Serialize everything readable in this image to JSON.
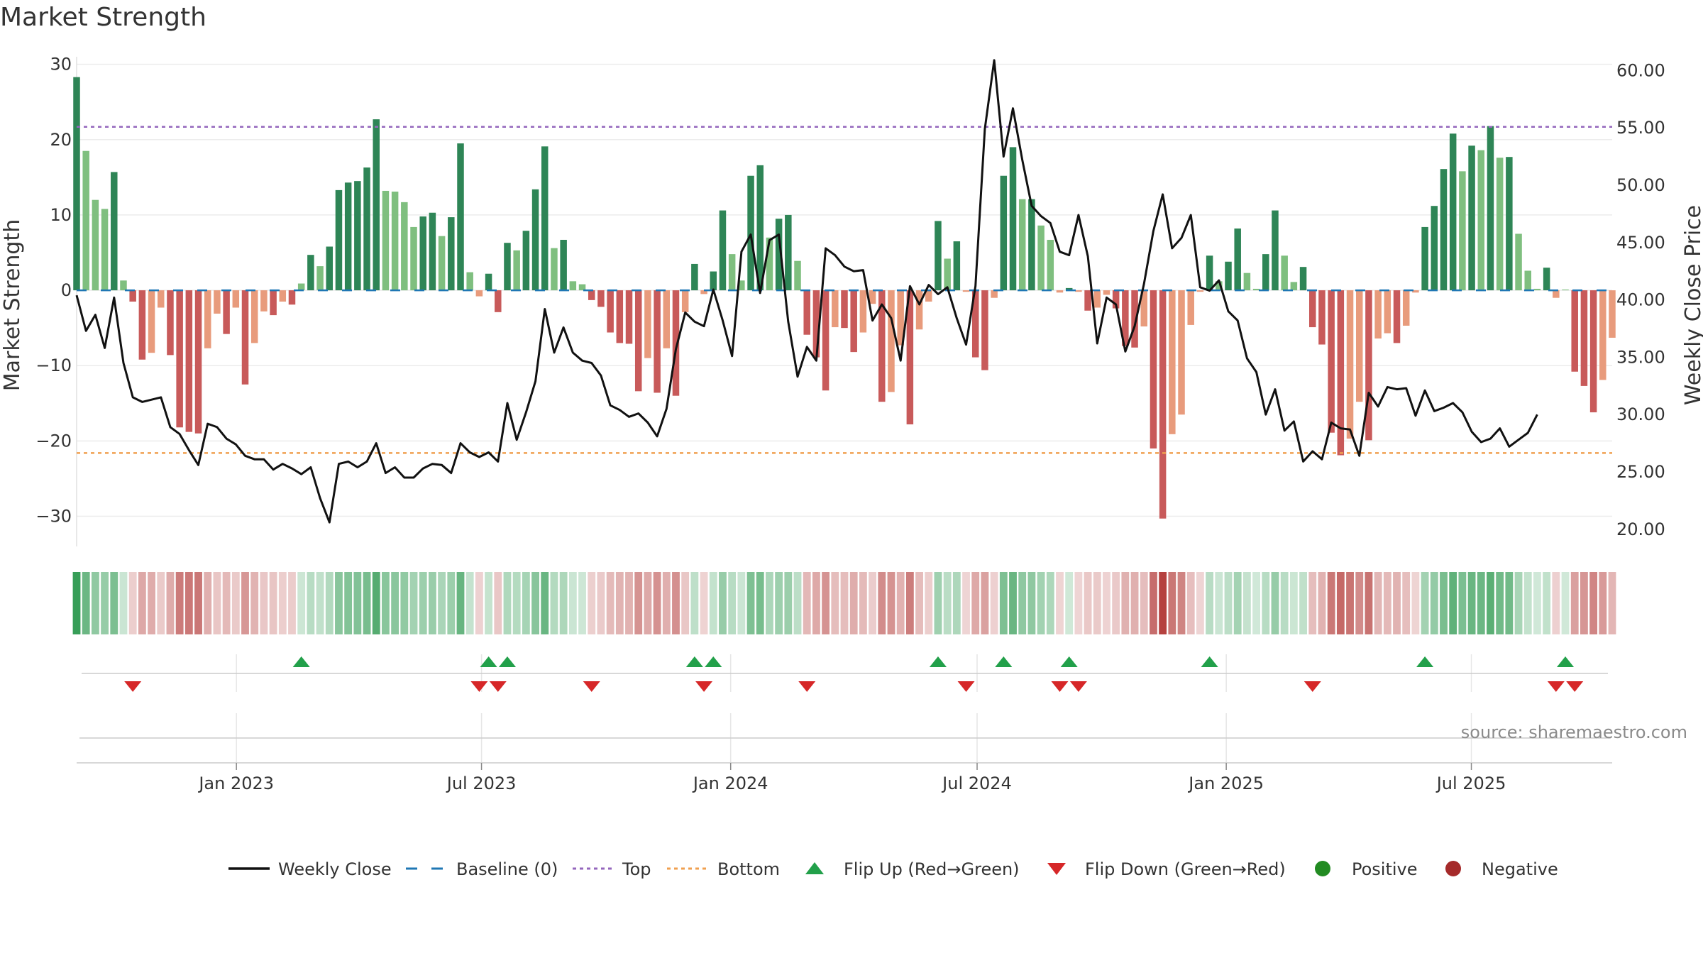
{
  "chart_data": {
    "type": "bar",
    "title": "Market Strength",
    "ylabel": "Market Strength",
    "ylabel_right": "Weekly Close Price",
    "ylim": [
      -34,
      31
    ],
    "ylim_right": [
      18.5,
      61.2
    ],
    "y_ticks": [
      30,
      20,
      10,
      0,
      -10,
      -20,
      -30
    ],
    "y_tick_labels": [
      "30",
      "20",
      "10",
      "0",
      "−10",
      "−20",
      "−30"
    ],
    "y_right_ticks": [
      60,
      55,
      50,
      45,
      40,
      35,
      30,
      25,
      20
    ],
    "y_right_tick_labels": [
      "60.00",
      "55.00",
      "50.00",
      "45.00",
      "40.00",
      "35.00",
      "30.00",
      "25.00",
      "20.00"
    ],
    "x_start": "2022-09-05",
    "x_end": "2025-10-13",
    "x_ticks": [
      "2023-01-01",
      "2023-07-01",
      "2024-01-01",
      "2024-07-01",
      "2025-01-01",
      "2025-07-01"
    ],
    "x_tick_labels": [
      "Jan 2023",
      "Jul 2023",
      "Jan 2024",
      "Jul 2024",
      "Jan 2025",
      "Jul 2025"
    ],
    "top_threshold": 21.7,
    "bottom_threshold": -21.6,
    "grid": true,
    "legend_position": "bottom-center",
    "source": "source: sharemaestro.com",
    "strength": [
      28.3,
      18.5,
      12,
      10.8,
      15.7,
      1.3,
      -1.5,
      -9.2,
      -8.3,
      -2.3,
      -8.6,
      -18.2,
      -18.8,
      -19,
      -7.7,
      -3.1,
      -5.8,
      -2.3,
      -12.5,
      -7,
      -2.8,
      -3.3,
      -1.5,
      -1.9,
      0.9,
      4.7,
      3.2,
      5.8,
      13.3,
      14.3,
      14.5,
      16.3,
      22.7,
      13.2,
      13.1,
      11.7,
      8.4,
      9.8,
      10.3,
      7.2,
      9.7,
      19.5,
      2.4,
      -0.8,
      2.2,
      -2.9,
      6.3,
      5.3,
      7.9,
      13.4,
      19.1,
      5.6,
      6.7,
      1.2,
      0.8,
      -1.3,
      -2.2,
      -5.6,
      -7,
      -7.1,
      -13.4,
      -9,
      -13.6,
      -7.7,
      -14,
      -2.9,
      3.5,
      -0.5,
      2.5,
      10.6,
      4.8,
      1.3,
      15.2,
      16.6,
      7,
      9.5,
      10,
      3.9,
      -5.9,
      -8.9,
      -13.3,
      -4.9,
      -5,
      -8.2,
      -5.6,
      -1.8,
      -14.8,
      -13.5,
      -7.3,
      -17.8,
      -5.2,
      -1.5,
      9.2,
      4.2,
      6.5,
      -0.2,
      -8.9,
      -10.6,
      -1,
      15.2,
      19,
      12.1,
      12.1,
      8.6,
      6.7,
      -0.3,
      0.3,
      -0.2,
      -2.7,
      -2.3,
      -0.6,
      -2.4,
      -7.4,
      -7.6,
      -4.8,
      -21,
      -30.3,
      -19.1,
      -16.5,
      -4.6,
      -0.2,
      4.6,
      1.2,
      3.8,
      8.2,
      2.3,
      0.2,
      4.8,
      10.6,
      4.6,
      1.1,
      3.1,
      -4.9,
      -7.2,
      -18.9,
      -21.9,
      -19.7,
      -14.8,
      -19.9,
      -6.4,
      -5.7,
      -7,
      -4.7,
      -0.3,
      8.4,
      11.2,
      16.1,
      20.8,
      15.8,
      19.2,
      18.6,
      21.8,
      17.6,
      17.7,
      7.5,
      2.6,
      0.2,
      3,
      -1,
      0.1,
      -10.8,
      -12.7,
      -16.2,
      -11.9,
      -6.3
    ],
    "weekly_close": [
      40.4,
      37.3,
      38.7,
      35.8,
      40.2,
      34.5,
      31.5,
      31.1,
      31.3,
      31.5,
      28.9,
      28.3,
      26.9,
      25.6,
      29.2,
      28.9,
      27.9,
      27.4,
      26.4,
      26.1,
      26.1,
      25.2,
      25.7,
      25.3,
      24.8,
      25.4,
      22.7,
      20.6,
      25.7,
      25.9,
      25.4,
      25.9,
      27.5,
      24.9,
      25.4,
      24.5,
      24.5,
      25.3,
      25.7,
      25.6,
      24.9,
      27.5,
      26.7,
      26.3,
      26.7,
      25.9,
      31,
      27.8,
      30.2,
      32.9,
      39.2,
      35.4,
      37.6,
      35.4,
      34.7,
      34.5,
      33.4,
      30.8,
      30.4,
      29.8,
      30.1,
      29.3,
      28.1,
      30.5,
      35.7,
      38.9,
      38.1,
      37.7,
      40.9,
      38.2,
      35.1,
      44.2,
      45.7,
      40.6,
      45.2,
      45.7,
      38.1,
      33.3,
      35.9,
      34.7,
      44.5,
      43.9,
      42.9,
      42.5,
      42.6,
      38.2,
      39.6,
      38.4,
      34.7,
      41.2,
      39.6,
      41.3,
      40.5,
      41.1,
      38.4,
      36.1,
      41.2,
      54.9,
      60.9,
      52.5,
      56.7,
      52.2,
      48.2,
      47.3,
      46.7,
      44.2,
      43.9,
      47.4,
      43.8,
      36.2,
      40.2,
      39.6,
      35.5,
      37.7,
      41.4,
      46,
      49.2,
      44.5,
      45.4,
      47.4,
      41.1,
      40.8,
      41.7,
      39,
      38.2,
      34.9,
      33.7,
      30,
      32.2,
      28.6,
      29.4,
      25.9,
      26.8,
      26.1,
      29.3,
      28.8,
      28.7,
      26.4,
      31.9,
      30.7,
      32.4,
      32.2,
      32.3,
      29.9,
      32.1,
      30.3,
      30.6,
      31,
      30.2,
      28.5,
      27.6,
      27.9,
      28.8,
      27.2,
      27.8,
      28.4,
      30
    ],
    "series": [
      {
        "name": "Weekly Close"
      },
      {
        "name": "Baseline (0)"
      },
      {
        "name": "Top"
      },
      {
        "name": "Bottom"
      },
      {
        "name": "Flip Up (Red→Green)"
      },
      {
        "name": "Flip Down (Green→Red)"
      },
      {
        "name": "Positive"
      },
      {
        "name": "Negative"
      }
    ],
    "colors": {
      "positive_dark": "#2e8556",
      "positive_light": "#7fbf7f",
      "negative_dark": "#c85a5a",
      "negative_light": "#e89b7c",
      "weekly_close": "#111111",
      "baseline": "#1f77b4",
      "top": "#9467bd",
      "bottom": "#f0a050",
      "flip_up": "#22a04a",
      "flip_down": "#d62728",
      "positive_dot": "#228b22",
      "negative_dot": "#a52a2a"
    }
  }
}
